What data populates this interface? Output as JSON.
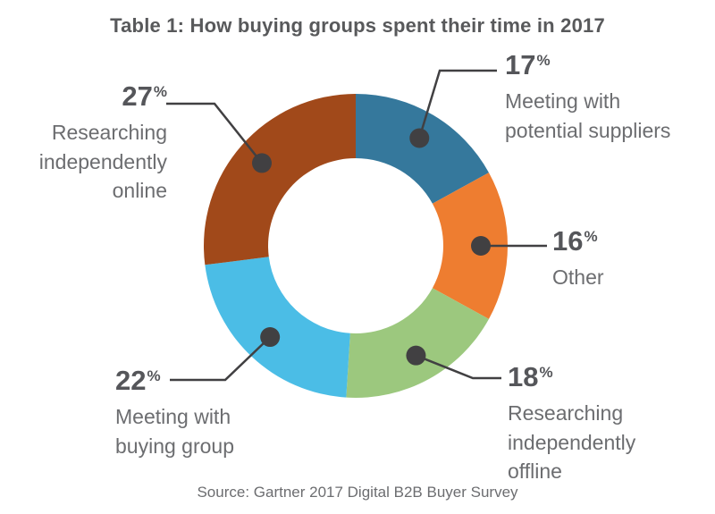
{
  "title": "Table 1: How buying groups spent their time in 2017",
  "source": "Source: Gartner 2017 Digital B2B Buyer Survey",
  "percent_sign": "%",
  "chart_data": {
    "type": "pie",
    "subtype": "donut",
    "title": "Table 1: How buying groups spent their time in 2017",
    "source": "Source: Gartner 2017 Digital B2B Buyer Survey",
    "start_angle_deg": 0,
    "direction": "clockwise",
    "legend_position": "callout-labels",
    "leader_color": "#414042",
    "series": [
      {
        "label": "Meeting with\npotential suppliers",
        "value": 17,
        "color": "#35789c"
      },
      {
        "label": "Other",
        "value": 16,
        "color": "#ee7d30"
      },
      {
        "label": "Researching\nindependently\noffline",
        "value": 18,
        "color": "#9cc87e"
      },
      {
        "label": "Meeting with\nbuying group",
        "value": 22,
        "color": "#4bbde6"
      },
      {
        "label": "Researching\nindependently\nonline",
        "value": 27,
        "color": "#a1491a"
      }
    ]
  }
}
